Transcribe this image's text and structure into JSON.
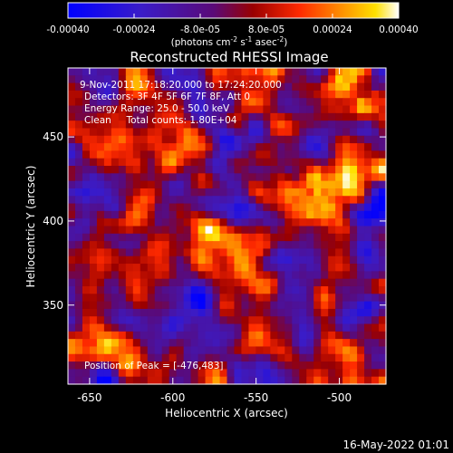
{
  "colorbar": {
    "ticks": [
      "-0.00040",
      "-0.00024",
      "-8.0e-05",
      "8.0e-05",
      "0.00024",
      "0.00040"
    ],
    "tick_values": [
      -0.0004,
      -0.00024,
      -8e-05,
      8e-05,
      0.00024,
      0.0004
    ],
    "range": [
      -0.0004,
      0.0004
    ],
    "units": {
      "prefix": "(photons cm",
      "exp1": "-2",
      "mid": " s",
      "exp2": "-1",
      "mid2": " asec",
      "exp3": "-2",
      "suffix": ")"
    }
  },
  "info": {
    "line1": "9-Nov-2011 17:18:20.000 to 17:24:20.000",
    "line2": "Detectors: 3F 4F 5F 6F 7F 8F, Att 0",
    "line3": "Energy Range: 25.0 - 50.0 keV",
    "line4": "Clean     Total counts: 1.80E+04",
    "peak": "Position of Peak = [-476,483]"
  },
  "footer": {
    "timestamp": "16-May-2022 01:01"
  },
  "colors": {
    "background": "#000000",
    "text": "#ffffff"
  },
  "chart_data": {
    "type": "heatmap",
    "title": "Reconstructed RHESSI Image",
    "xlabel": "Heliocentric X (arcsec)",
    "ylabel": "Heliocentric Y (arcsec)",
    "xlim": [
      -663,
      -472
    ],
    "ylim": [
      303,
      491
    ],
    "xticks": [
      -650,
      -600,
      -550,
      -500
    ],
    "xtick_labels": [
      "-650",
      "-600",
      "-550",
      "-500"
    ],
    "yticks": [
      350,
      400,
      450
    ],
    "ytick_labels": [
      "350",
      "400",
      "450"
    ],
    "colormap": "blue-purple-red-yellow-white",
    "peak_position": [
      -476,
      483
    ],
    "grid_cols": 44,
    "grid_rows": 42,
    "seed": 7
  }
}
